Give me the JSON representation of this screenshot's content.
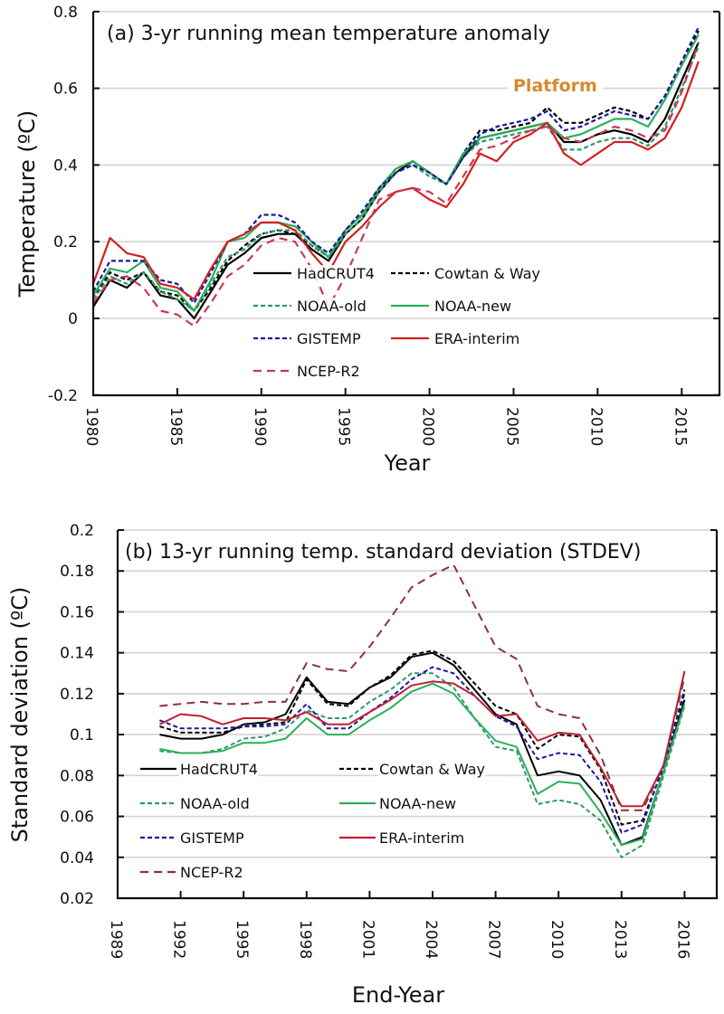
{
  "chart_data": [
    {
      "type": "line",
      "id": "a",
      "title": "(a) 3-yr running mean temperature anomaly",
      "xlabel": "Year",
      "ylabel": "Temperature (ºC)",
      "xlim": [
        1980,
        2017.5
      ],
      "ylim": [
        -0.2,
        0.8
      ],
      "xticks": [
        1980,
        1985,
        1990,
        1995,
        2000,
        2005,
        2010,
        2015
      ],
      "xtick_labels": [
        "1980",
        "1985",
        "1990",
        "1995",
        "2000",
        "2005",
        "2010",
        "2015"
      ],
      "yticks": [
        -0.2,
        0,
        0.2,
        0.4,
        0.6,
        0.8
      ],
      "ytick_labels": [
        "-0.2",
        "0",
        "0.2",
        "0.4",
        "0.6",
        "0.8"
      ],
      "grid": true,
      "annotation": {
        "text": "Platform",
        "color": "#d98a2b",
        "x": 2007.5,
        "y": 0.6
      },
      "legend_position": "bottom-right",
      "x": [
        1980,
        1981,
        1982,
        1983,
        1984,
        1985,
        1986,
        1987,
        1988,
        1989,
        1990,
        1991,
        1992,
        1993,
        1994,
        1995,
        1996,
        1997,
        1998,
        1999,
        2000,
        2001,
        2002,
        2003,
        2004,
        2005,
        2006,
        2007,
        2008,
        2009,
        2010,
        2011,
        2012,
        2013,
        2014,
        2015,
        2016
      ],
      "series": [
        {
          "name": "HadCRUT4",
          "color": "#000000",
          "dash": "solid",
          "values": [
            0.03,
            0.1,
            0.08,
            0.12,
            0.06,
            0.05,
            0.0,
            0.07,
            0.14,
            0.17,
            0.21,
            0.22,
            0.22,
            0.18,
            0.15,
            0.22,
            0.26,
            0.33,
            0.38,
            0.41,
            0.38,
            0.35,
            0.42,
            0.47,
            0.48,
            0.49,
            0.5,
            0.51,
            0.46,
            0.46,
            0.48,
            0.49,
            0.48,
            0.46,
            0.52,
            0.62,
            0.72
          ]
        },
        {
          "name": "Cowtan & Way",
          "color": "#000000",
          "dash": "dashed",
          "values": [
            0.05,
            0.12,
            0.1,
            0.12,
            0.07,
            0.06,
            0.02,
            0.08,
            0.15,
            0.19,
            0.22,
            0.23,
            0.22,
            0.19,
            0.16,
            0.23,
            0.27,
            0.34,
            0.39,
            0.41,
            0.38,
            0.35,
            0.43,
            0.49,
            0.49,
            0.5,
            0.51,
            0.55,
            0.51,
            0.51,
            0.53,
            0.55,
            0.54,
            0.52,
            0.58,
            0.66,
            0.75
          ]
        },
        {
          "name": "NOAA-old",
          "color": "#2e9a6a",
          "dash": "dashed",
          "values": [
            0.05,
            0.11,
            0.09,
            0.12,
            0.07,
            0.05,
            0.02,
            0.09,
            0.16,
            0.18,
            0.22,
            0.23,
            0.23,
            0.19,
            0.16,
            0.22,
            0.26,
            0.33,
            0.38,
            0.4,
            0.37,
            0.35,
            0.42,
            0.46,
            0.47,
            0.48,
            0.49,
            0.5,
            0.44,
            0.44,
            0.46,
            0.47,
            0.47,
            0.45,
            0.5,
            0.6,
            0.71
          ]
        },
        {
          "name": "NOAA-new",
          "color": "#2bb05a",
          "dash": "solid",
          "values": [
            0.06,
            0.13,
            0.12,
            0.15,
            0.08,
            0.07,
            0.02,
            0.1,
            0.2,
            0.21,
            0.25,
            0.25,
            0.24,
            0.2,
            0.16,
            0.23,
            0.27,
            0.34,
            0.39,
            0.41,
            0.38,
            0.35,
            0.43,
            0.47,
            0.48,
            0.49,
            0.5,
            0.51,
            0.47,
            0.48,
            0.5,
            0.52,
            0.52,
            0.5,
            0.57,
            0.66,
            0.74
          ]
        },
        {
          "name": "GISTEMP",
          "color": "#1a1a9a",
          "dash": "dashed",
          "values": [
            0.07,
            0.15,
            0.15,
            0.15,
            0.1,
            0.09,
            0.04,
            0.12,
            0.2,
            0.22,
            0.27,
            0.27,
            0.25,
            0.2,
            0.17,
            0.23,
            0.28,
            0.34,
            0.38,
            0.4,
            0.38,
            0.35,
            0.42,
            0.48,
            0.5,
            0.51,
            0.52,
            0.54,
            0.49,
            0.5,
            0.52,
            0.54,
            0.53,
            0.52,
            0.58,
            0.67,
            0.76
          ]
        },
        {
          "name": "ERA-interim",
          "color": "#d42020",
          "dash": "solid",
          "values": [
            0.09,
            0.21,
            0.17,
            0.16,
            0.09,
            0.08,
            0.05,
            0.13,
            0.2,
            0.22,
            0.25,
            0.25,
            0.23,
            0.17,
            0.12,
            0.2,
            0.24,
            0.29,
            0.33,
            0.34,
            0.31,
            0.29,
            0.35,
            0.43,
            0.41,
            0.46,
            0.48,
            0.51,
            0.43,
            0.4,
            0.43,
            0.46,
            0.46,
            0.44,
            0.47,
            0.55,
            0.67
          ]
        },
        {
          "name": "NCEP-R2",
          "color": "#c8385a",
          "dash": "longdash",
          "values": [
            0.04,
            0.1,
            0.11,
            0.08,
            0.02,
            0.01,
            -0.02,
            0.04,
            0.11,
            0.14,
            0.19,
            0.21,
            0.2,
            0.13,
            0.03,
            0.11,
            0.21,
            0.31,
            0.33,
            0.34,
            0.33,
            0.3,
            0.37,
            0.44,
            0.45,
            0.47,
            0.49,
            0.5,
            0.47,
            0.46,
            0.48,
            0.5,
            0.49,
            0.47,
            0.49,
            0.59,
            0.72
          ]
        }
      ]
    },
    {
      "type": "line",
      "id": "b",
      "title": "(b) 13-yr running  temp. standard deviation (STDEV)",
      "xlabel": "End-Year",
      "ylabel": "Standard deviation (ºC)",
      "xlim": [
        1989,
        2017.5
      ],
      "ylim": [
        0.02,
        0.2
      ],
      "xticks": [
        1989,
        1992,
        1995,
        1998,
        2001,
        2004,
        2007,
        2010,
        2013,
        2016
      ],
      "xtick_labels": [
        "1989",
        "1992",
        "1995",
        "1998",
        "2001",
        "2004",
        "2007",
        "2010",
        "2013",
        "2016"
      ],
      "yticks": [
        0.02,
        0.04,
        0.06,
        0.08,
        0.1,
        0.12,
        0.14,
        0.16,
        0.18,
        0.2
      ],
      "ytick_labels": [
        "0.02",
        "0.04",
        "0.06",
        "0.08",
        "0.1",
        "0.12",
        "0.14",
        "0.16",
        "0.18",
        "0.2"
      ],
      "grid": true,
      "legend_position": "bottom-left",
      "x": [
        1991,
        1992,
        1993,
        1994,
        1995,
        1996,
        1997,
        1998,
        1999,
        2000,
        2001,
        2002,
        2003,
        2004,
        2005,
        2006,
        2007,
        2008,
        2009,
        2010,
        2011,
        2012,
        2013,
        2014,
        2015,
        2016
      ],
      "series": [
        {
          "name": "HadCRUT4",
          "color": "#000000",
          "dash": "solid",
          "values": [
            0.1,
            0.098,
            0.098,
            0.1,
            0.105,
            0.106,
            0.11,
            0.128,
            0.116,
            0.115,
            0.123,
            0.128,
            0.138,
            0.14,
            0.134,
            0.122,
            0.11,
            0.105,
            0.08,
            0.082,
            0.08,
            0.068,
            0.046,
            0.05,
            0.082,
            0.117
          ]
        },
        {
          "name": "Cowtan & Way",
          "color": "#000000",
          "dash": "dashed",
          "values": [
            0.104,
            0.101,
            0.101,
            0.101,
            0.104,
            0.105,
            0.106,
            0.127,
            0.115,
            0.114,
            0.123,
            0.129,
            0.139,
            0.141,
            0.136,
            0.125,
            0.114,
            0.11,
            0.093,
            0.1,
            0.099,
            0.083,
            0.056,
            0.058,
            0.084,
            0.122
          ]
        },
        {
          "name": "NOAA-old",
          "color": "#2e9a6a",
          "dash": "dashed",
          "values": [
            0.092,
            0.091,
            0.091,
            0.093,
            0.098,
            0.099,
            0.103,
            0.112,
            0.108,
            0.108,
            0.116,
            0.122,
            0.13,
            0.13,
            0.123,
            0.108,
            0.094,
            0.092,
            0.066,
            0.068,
            0.066,
            0.058,
            0.04,
            0.046,
            0.08,
            0.114
          ]
        },
        {
          "name": "NOAA-new",
          "color": "#2bb05a",
          "dash": "solid",
          "values": [
            0.093,
            0.091,
            0.091,
            0.092,
            0.096,
            0.096,
            0.098,
            0.108,
            0.1,
            0.1,
            0.107,
            0.113,
            0.121,
            0.125,
            0.12,
            0.108,
            0.097,
            0.094,
            0.071,
            0.077,
            0.076,
            0.062,
            0.046,
            0.049,
            0.082,
            0.115
          ]
        },
        {
          "name": "GISTEMP",
          "color": "#1a1a9a",
          "dash": "dashed",
          "values": [
            0.107,
            0.103,
            0.103,
            0.103,
            0.104,
            0.104,
            0.105,
            0.115,
            0.103,
            0.103,
            0.111,
            0.118,
            0.127,
            0.133,
            0.13,
            0.119,
            0.109,
            0.104,
            0.088,
            0.091,
            0.09,
            0.077,
            0.052,
            0.056,
            0.085,
            0.12
          ]
        },
        {
          "name": "ERA-interim",
          "color": "#c02030",
          "dash": "solid",
          "values": [
            0.105,
            0.11,
            0.109,
            0.105,
            0.108,
            0.108,
            0.107,
            0.111,
            0.105,
            0.105,
            0.111,
            0.117,
            0.124,
            0.126,
            0.125,
            0.119,
            0.109,
            0.11,
            0.097,
            0.101,
            0.1,
            0.084,
            0.065,
            0.065,
            0.085,
            0.131
          ]
        },
        {
          "name": "NCEP-R2",
          "color": "#8a3040",
          "dash": "longdash",
          "values": [
            0.114,
            0.115,
            0.116,
            0.115,
            0.115,
            0.116,
            0.116,
            0.135,
            0.132,
            0.131,
            0.143,
            0.157,
            0.172,
            0.178,
            0.183,
            0.163,
            0.143,
            0.137,
            0.114,
            0.11,
            0.108,
            0.09,
            0.063,
            0.063,
            0.085,
            0.128
          ]
        }
      ]
    }
  ]
}
